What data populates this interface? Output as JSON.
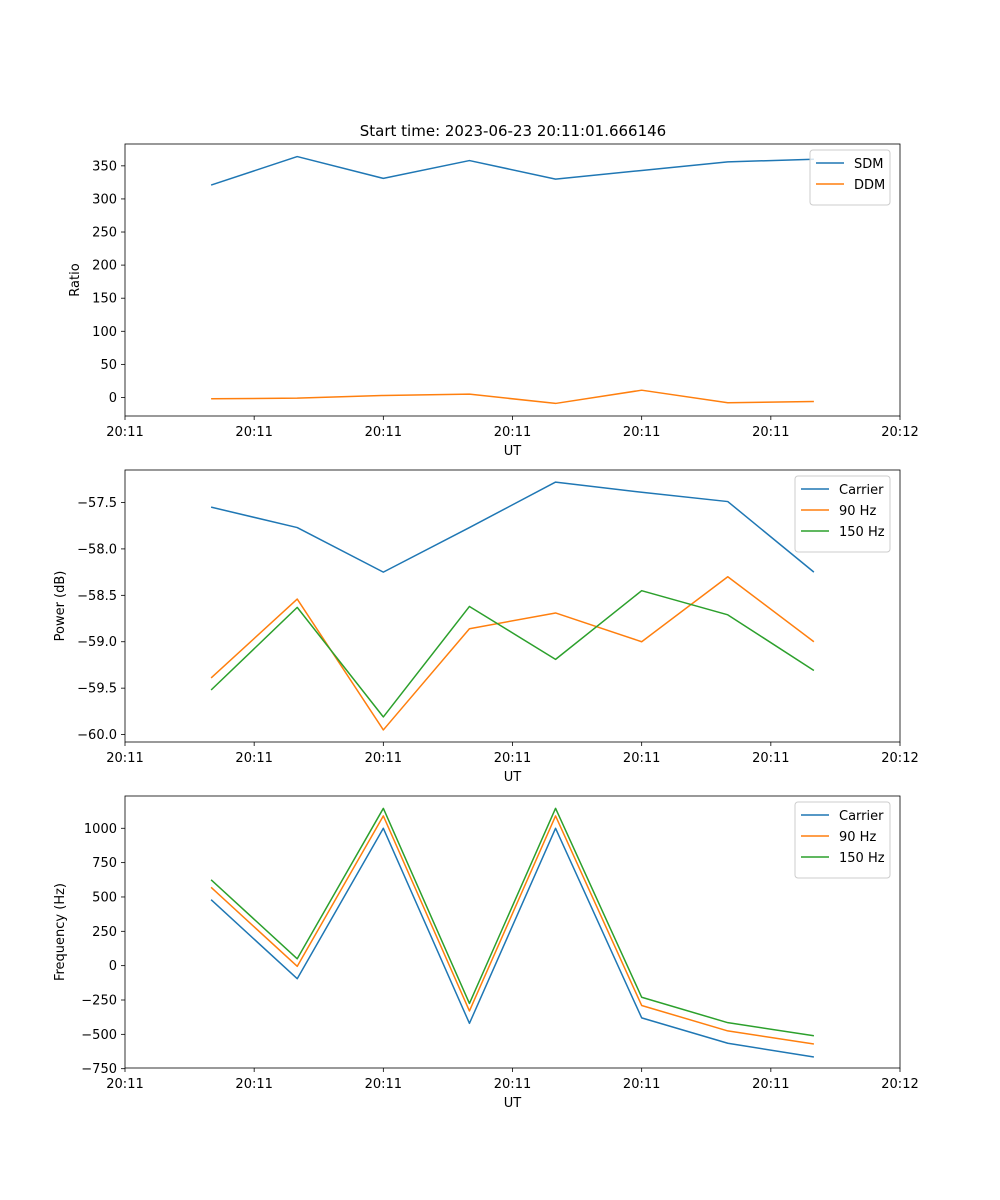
{
  "figure_title": "Start time: 2023-06-23 20:11:01.666146",
  "colors": {
    "blue": "#1f77b4",
    "orange": "#ff7f0e",
    "green": "#2ca02c"
  },
  "chart_data": [
    {
      "type": "line",
      "title": "Start time: 2023-06-23 20:11:01.666146",
      "xlabel": "UT",
      "ylabel": "Ratio",
      "x": [
        1,
        2,
        3,
        4,
        5,
        6,
        7,
        8
      ],
      "xlim": [
        0,
        9
      ],
      "xticks": [
        0,
        1.5,
        3,
        4.5,
        6,
        7.5,
        9
      ],
      "xticklabels": [
        "20:11",
        "20:11",
        "20:11",
        "20:11",
        "20:11",
        "20:11",
        "20:12"
      ],
      "ylim": [
        -28,
        383
      ],
      "yticks": [
        0,
        50,
        100,
        150,
        200,
        250,
        300,
        350
      ],
      "legend_loc": "upper right",
      "grid": false,
      "series": [
        {
          "name": "SDM",
          "color": "#1f77b4",
          "values": [
            321,
            364,
            331,
            358,
            330,
            343,
            356,
            360
          ]
        },
        {
          "name": "DDM",
          "color": "#ff7f0e",
          "values": [
            -2,
            -1,
            3,
            5,
            -9,
            11,
            -8,
            -6
          ]
        }
      ]
    },
    {
      "type": "line",
      "xlabel": "UT",
      "ylabel": "Power (dB)",
      "x": [
        1,
        2,
        3,
        4,
        5,
        6,
        7,
        8
      ],
      "xlim": [
        0,
        9
      ],
      "xticks": [
        0,
        1.5,
        3,
        4.5,
        6,
        7.5,
        9
      ],
      "xticklabels": [
        "20:11",
        "20:11",
        "20:11",
        "20:11",
        "20:11",
        "20:11",
        "20:12"
      ],
      "ylim": [
        -60.08,
        -57.15
      ],
      "yticks": [
        -60.0,
        -59.5,
        -59.0,
        -58.5,
        -58.0,
        -57.5
      ],
      "yticklabels": [
        "−60.0",
        "−59.5",
        "−59.0",
        "−58.5",
        "−58.0",
        "−57.5"
      ],
      "legend_loc": "upper right",
      "grid": false,
      "series": [
        {
          "name": "Carrier",
          "color": "#1f77b4",
          "values": [
            -57.55,
            -57.77,
            -58.25,
            -57.77,
            -57.28,
            -57.39,
            -57.49,
            -58.25
          ]
        },
        {
          "name": "90 Hz",
          "color": "#ff7f0e",
          "values": [
            -59.39,
            -58.54,
            -59.95,
            -58.86,
            -58.69,
            -59.0,
            -58.3,
            -59.0
          ]
        },
        {
          "name": "150 Hz",
          "color": "#2ca02c",
          "values": [
            -59.52,
            -58.63,
            -59.81,
            -58.62,
            -59.19,
            -58.45,
            -58.71,
            -59.31
          ]
        }
      ]
    },
    {
      "type": "line",
      "xlabel": "UT",
      "ylabel": "Frequency (Hz)",
      "x": [
        1,
        2,
        3,
        4,
        5,
        6,
        7,
        8
      ],
      "xlim": [
        0,
        9
      ],
      "xticks": [
        0,
        1.5,
        3,
        4.5,
        6,
        7.5,
        9
      ],
      "xticklabels": [
        "20:11",
        "20:11",
        "20:11",
        "20:11",
        "20:11",
        "20:11",
        "20:12"
      ],
      "ylim": [
        -745,
        1235
      ],
      "yticks": [
        -750,
        -500,
        -250,
        0,
        250,
        500,
        750,
        1000
      ],
      "yticklabels": [
        "−750",
        "−500",
        "−250",
        "0",
        "250",
        "500",
        "750",
        "1000"
      ],
      "legend_loc": "upper right",
      "grid": false,
      "series": [
        {
          "name": "Carrier",
          "color": "#1f77b4",
          "values": [
            480,
            -95,
            1000,
            -420,
            1000,
            -380,
            -565,
            -665
          ]
        },
        {
          "name": "90 Hz",
          "color": "#ff7f0e",
          "values": [
            570,
            -5,
            1090,
            -330,
            1090,
            -290,
            -475,
            -570
          ]
        },
        {
          "name": "150 Hz",
          "color": "#2ca02c",
          "values": [
            625,
            50,
            1145,
            -275,
            1145,
            -230,
            -415,
            -510
          ]
        }
      ]
    }
  ]
}
